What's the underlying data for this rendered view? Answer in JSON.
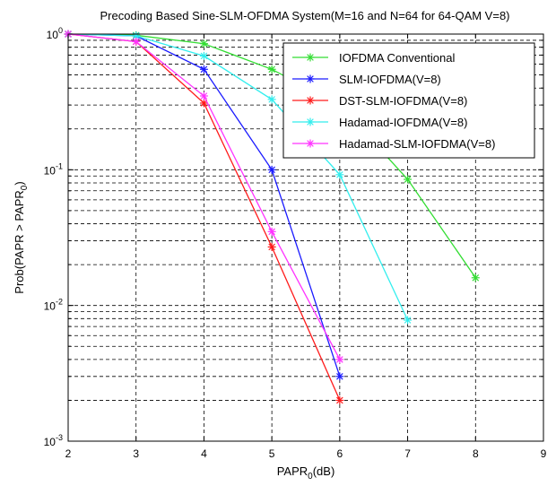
{
  "chart_data": {
    "type": "line",
    "title": "Precoding Based Sine-SLM-OFDMA System(M=16 and N=64 for 64-QAM V=8)",
    "xlabel_main": "PAPR",
    "xlabel_sub": "0",
    "xlabel_tail": "(dB)",
    "ylabel_main": "Prob(PAPR > PAPR",
    "ylabel_sub": "0",
    "ylabel_tail": ")",
    "xlim": [
      2,
      9
    ],
    "ylim": [
      0.001,
      1
    ],
    "yscale": "log",
    "grid": true,
    "legend_position": "top-right",
    "x_ticks": [
      "2",
      "3",
      "4",
      "5",
      "6",
      "7",
      "8",
      "9"
    ],
    "y_ticks": [
      {
        "base": "10",
        "exp": "0",
        "value": 1
      },
      {
        "base": "10",
        "exp": "-1",
        "value": 0.1
      },
      {
        "base": "10",
        "exp": "-2",
        "value": 0.01
      },
      {
        "base": "10",
        "exp": "-3",
        "value": 0.001
      }
    ],
    "series": [
      {
        "name": "IOFDMA Conventional",
        "color": "#33dd33",
        "x": [
          2,
          3,
          4,
          5,
          6,
          7,
          8
        ],
        "y": [
          1.0,
          0.98,
          0.85,
          0.55,
          0.3,
          0.085,
          0.016
        ]
      },
      {
        "name": "SLM-IOFDMA(V=8)",
        "color": "#1a1aff",
        "x": [
          2,
          3,
          4,
          5,
          6
        ],
        "y": [
          1.0,
          0.97,
          0.55,
          0.1,
          0.003
        ]
      },
      {
        "name": "DST-SLM-IOFDMA(V=8)",
        "color": "#ff1a1a",
        "x": [
          2,
          3,
          4,
          5,
          6
        ],
        "y": [
          1.0,
          0.88,
          0.31,
          0.027,
          0.002
        ]
      },
      {
        "name": "Hadamad-IOFDMA(V=8)",
        "color": "#33eeee",
        "x": [
          2,
          3,
          4,
          5,
          6,
          7
        ],
        "y": [
          1.0,
          0.97,
          0.69,
          0.33,
          0.092,
          0.0078
        ]
      },
      {
        "name": "Hadamad-SLM-IOFDMA(V=8)",
        "color": "#ff33ff",
        "x": [
          2,
          3,
          4,
          5,
          6
        ],
        "y": [
          1.0,
          0.88,
          0.35,
          0.035,
          0.004
        ]
      }
    ]
  }
}
